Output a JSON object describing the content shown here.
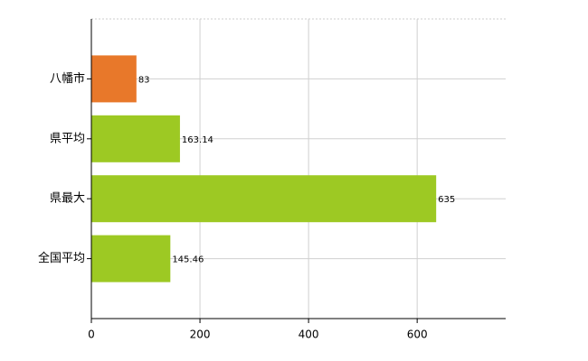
{
  "chart_data": {
    "type": "barh",
    "categories": [
      "八幡市",
      "県平均",
      "県最大",
      "全国平均"
    ],
    "values": [
      83,
      163.14,
      635,
      145.46
    ],
    "colors": [
      "#e8782a",
      "#9dc923",
      "#9dc923",
      "#9dc923"
    ],
    "xlim": [
      0,
      763
    ],
    "xticks": [
      0,
      200,
      400,
      600
    ],
    "grid": true
  }
}
